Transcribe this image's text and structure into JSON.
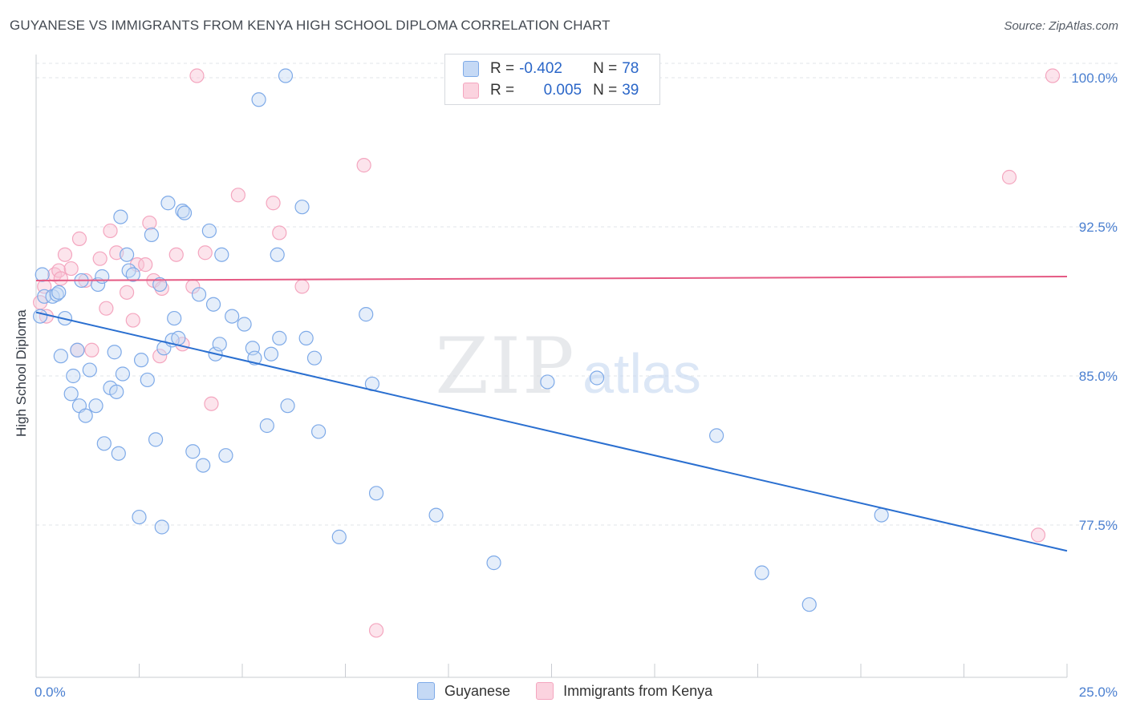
{
  "header": {
    "title": "GUYANESE VS IMMIGRANTS FROM KENYA HIGH SCHOOL DIPLOMA CORRELATION CHART",
    "source": "Source: ZipAtlas.com"
  },
  "watermark": {
    "zip": "ZIP",
    "atlas": "atlas"
  },
  "legend_top": {
    "rows": [
      {
        "r_label": "R =",
        "r_value": "-0.402",
        "n_label": "N =",
        "n_value": "78"
      },
      {
        "r_label": "R =",
        "r_value": "0.005",
        "n_label": "N =",
        "n_value": "39"
      }
    ]
  },
  "chart_data": {
    "type": "scatter",
    "ylabel": "High School Diploma",
    "x_tick_labels": {
      "min": "0.0%",
      "max": "25.0%"
    },
    "y_tick_labels": [
      "100.0%",
      "92.5%",
      "85.0%",
      "77.5%"
    ],
    "y_ticks": [
      100.0,
      92.5,
      85.0,
      77.5
    ],
    "xlim": [
      0,
      25
    ],
    "ylim": [
      71.0,
      101.0
    ],
    "grid": true,
    "legend_placement": "bottom-center",
    "colors": {
      "guyanese": "#7eaae8",
      "kenya": "#f4a6bf",
      "guyanese_line": "#2a6fd0",
      "kenya_line": "#e55a84"
    },
    "series": [
      {
        "name": "Guyanese",
        "r": -0.402,
        "n": 78,
        "trend": {
          "x": [
            0,
            25
          ],
          "y": [
            88.2,
            76.2
          ]
        },
        "points": [
          [
            0.1,
            88.0
          ],
          [
            0.15,
            90.1
          ],
          [
            0.2,
            89.0
          ],
          [
            0.4,
            89.0
          ],
          [
            0.5,
            89.1
          ],
          [
            0.55,
            89.2
          ],
          [
            0.6,
            86.0
          ],
          [
            0.7,
            87.9
          ],
          [
            0.85,
            84.1
          ],
          [
            0.9,
            85.0
          ],
          [
            1.0,
            86.3
          ],
          [
            1.05,
            83.5
          ],
          [
            1.1,
            89.8
          ],
          [
            1.2,
            83.0
          ],
          [
            1.3,
            85.3
          ],
          [
            1.45,
            83.5
          ],
          [
            1.5,
            89.6
          ],
          [
            1.6,
            90.0
          ],
          [
            1.65,
            81.6
          ],
          [
            1.8,
            84.4
          ],
          [
            1.9,
            86.2
          ],
          [
            1.95,
            84.2
          ],
          [
            2.0,
            81.1
          ],
          [
            2.05,
            93.0
          ],
          [
            2.1,
            85.1
          ],
          [
            2.2,
            91.1
          ],
          [
            2.25,
            90.3
          ],
          [
            2.35,
            90.1
          ],
          [
            2.5,
            77.9
          ],
          [
            2.55,
            85.8
          ],
          [
            2.7,
            84.8
          ],
          [
            2.8,
            92.1
          ],
          [
            2.9,
            81.8
          ],
          [
            3.0,
            89.6
          ],
          [
            3.05,
            77.4
          ],
          [
            3.1,
            86.4
          ],
          [
            3.2,
            93.7
          ],
          [
            3.3,
            86.8
          ],
          [
            3.35,
            87.9
          ],
          [
            3.45,
            86.9
          ],
          [
            3.55,
            93.3
          ],
          [
            3.6,
            93.2
          ],
          [
            3.8,
            81.2
          ],
          [
            3.95,
            89.1
          ],
          [
            4.05,
            80.5
          ],
          [
            4.2,
            92.3
          ],
          [
            4.3,
            88.6
          ],
          [
            4.35,
            86.1
          ],
          [
            4.45,
            86.6
          ],
          [
            4.5,
            91.1
          ],
          [
            4.6,
            81.0
          ],
          [
            4.75,
            88.0
          ],
          [
            5.05,
            87.6
          ],
          [
            5.25,
            86.4
          ],
          [
            5.3,
            85.9
          ],
          [
            5.4,
            98.9
          ],
          [
            5.6,
            82.5
          ],
          [
            5.7,
            86.1
          ],
          [
            5.85,
            91.1
          ],
          [
            5.9,
            86.9
          ],
          [
            6.05,
            100.1
          ],
          [
            6.1,
            83.5
          ],
          [
            6.45,
            93.5
          ],
          [
            6.55,
            86.9
          ],
          [
            6.75,
            85.9
          ],
          [
            6.85,
            82.2
          ],
          [
            7.35,
            76.9
          ],
          [
            8.0,
            88.1
          ],
          [
            8.15,
            84.6
          ],
          [
            8.25,
            79.1
          ],
          [
            9.7,
            78.0
          ],
          [
            11.1,
            75.6
          ],
          [
            12.4,
            84.7
          ],
          [
            13.6,
            84.9
          ],
          [
            16.5,
            82.0
          ],
          [
            17.6,
            75.1
          ],
          [
            18.75,
            73.5
          ],
          [
            20.5,
            78.0
          ]
        ]
      },
      {
        "name": "Immigrants from Kenya",
        "r": 0.005,
        "n": 39,
        "trend": {
          "x": [
            0,
            25
          ],
          "y": [
            89.8,
            90.0
          ]
        },
        "points": [
          [
            0.1,
            88.7
          ],
          [
            0.2,
            89.5
          ],
          [
            0.25,
            88.0
          ],
          [
            0.45,
            90.1
          ],
          [
            0.55,
            90.3
          ],
          [
            0.6,
            89.9
          ],
          [
            0.7,
            91.1
          ],
          [
            0.85,
            90.4
          ],
          [
            1.0,
            86.3
          ],
          [
            1.05,
            91.9
          ],
          [
            1.2,
            89.8
          ],
          [
            1.35,
            86.3
          ],
          [
            1.55,
            90.9
          ],
          [
            1.7,
            88.4
          ],
          [
            1.8,
            92.3
          ],
          [
            1.95,
            91.2
          ],
          [
            2.2,
            89.2
          ],
          [
            2.35,
            87.8
          ],
          [
            2.45,
            90.6
          ],
          [
            2.65,
            90.6
          ],
          [
            2.75,
            92.7
          ],
          [
            2.85,
            89.8
          ],
          [
            3.0,
            86.0
          ],
          [
            3.05,
            89.4
          ],
          [
            3.4,
            91.1
          ],
          [
            3.55,
            86.6
          ],
          [
            3.8,
            89.5
          ],
          [
            3.9,
            100.1
          ],
          [
            4.1,
            91.2
          ],
          [
            4.25,
            83.6
          ],
          [
            4.9,
            94.1
          ],
          [
            5.75,
            93.7
          ],
          [
            5.9,
            92.2
          ],
          [
            6.45,
            89.5
          ],
          [
            7.95,
            95.6
          ],
          [
            8.25,
            72.2
          ],
          [
            23.6,
            95.0
          ],
          [
            24.3,
            77.0
          ],
          [
            24.65,
            100.1
          ]
        ]
      }
    ]
  }
}
